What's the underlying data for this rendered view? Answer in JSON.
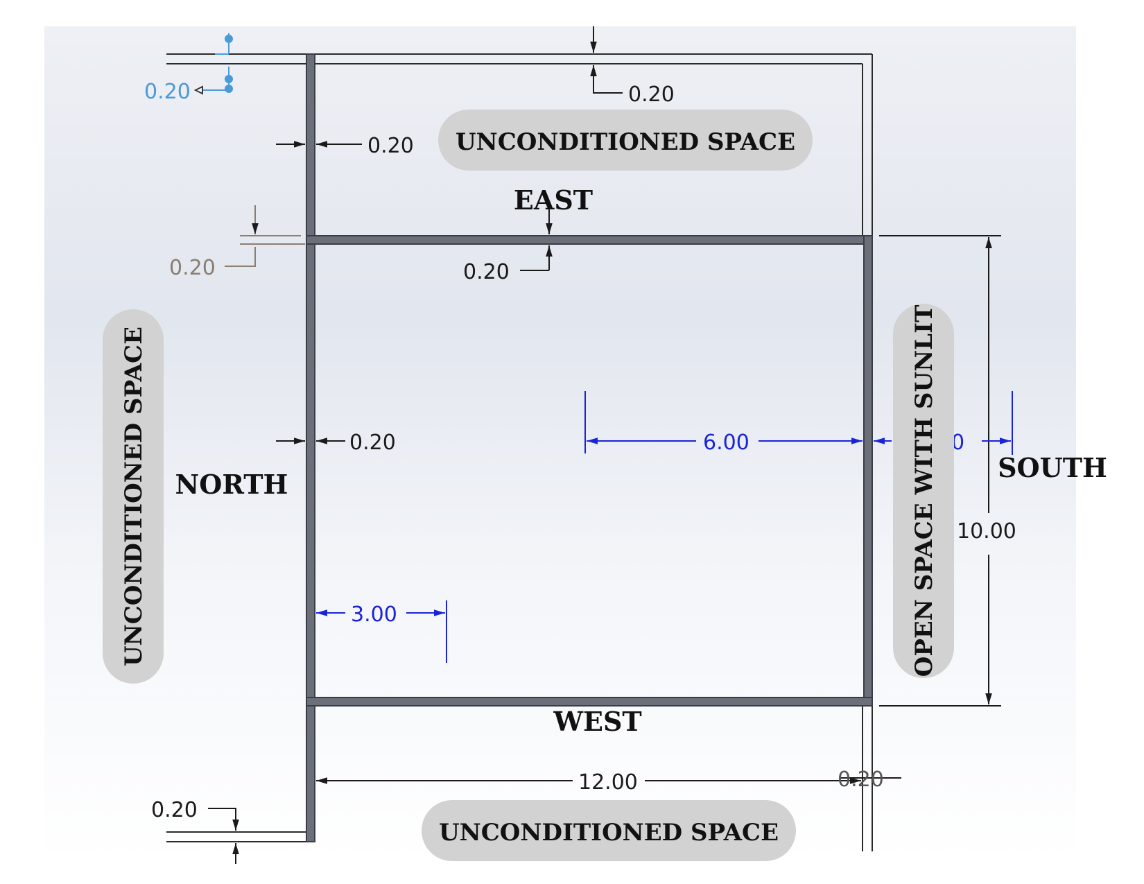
{
  "regions": {
    "top": "UNCONDITIONED SPACE",
    "bottom": "UNCONDITIONED SPACE",
    "left": "UNCONDITIONED SPACE",
    "right": "OPEN SPACE WITH SUNLIT"
  },
  "directions": {
    "east": "EAST",
    "west": "WEST",
    "north": "NORTH",
    "south": "SOUTH"
  },
  "dimensions": {
    "top_left_blue": "0.20",
    "top_right": "0.20",
    "left_wall_upper": "0.20",
    "divider_left": "0.20",
    "divider_center": "0.20",
    "left_wall_mid": "0.20",
    "width_blue": "6.00",
    "south_partial": "0",
    "height": "10.00",
    "offset_blue": "3.00",
    "overall_width": "12.00",
    "bottom_right": "0.20",
    "bottom_left": "0.20"
  },
  "colors": {
    "wall": "#6b6f7a",
    "wall_edge": "#3a3d45",
    "dimension_black": "#1a1a1a",
    "dimension_blue": "#1a24d6",
    "dimension_light_blue": "#4a9ad8",
    "dimension_gray": "#8a7e72",
    "label_pill": "#d2d2d2"
  }
}
